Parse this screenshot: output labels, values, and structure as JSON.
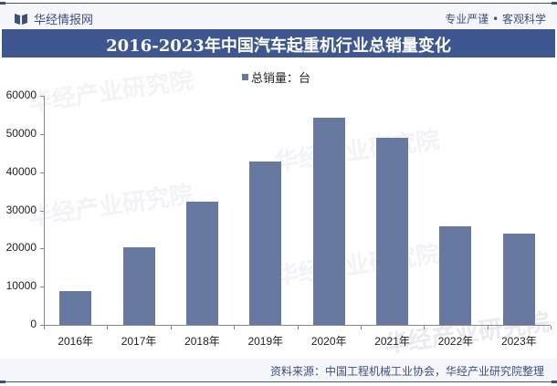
{
  "header": {
    "brand": "华经情报网",
    "slogan": "专业严谨 • 客观科学"
  },
  "title": "2016-2023年中国汽车起重机行业总销量变化",
  "legend": {
    "label": "总销量：台",
    "color": "#67799f"
  },
  "footer": {
    "source": "资料来源：中国工程机械工业协会，华经产业研究院整理"
  },
  "watermark": {
    "text": "华经产业研究院",
    "url": "www.huaon.com"
  },
  "colors": {
    "accent": "#3e5790",
    "bar": "#67799f",
    "header_bg": "#f4f6f9"
  },
  "chart_data": {
    "type": "bar",
    "title": "2016-2023年中国汽车起重机行业总销量变化",
    "categories": [
      "2016年",
      "2017年",
      "2018年",
      "2019年",
      "2020年",
      "2021年",
      "2022年",
      "2023年"
    ],
    "series": [
      {
        "name": "总销量：台",
        "values": [
          8900,
          20300,
          32200,
          42900,
          54200,
          49100,
          25800,
          23800
        ]
      }
    ],
    "xlabel": "",
    "ylabel": "",
    "ylim": [
      0,
      60000
    ],
    "yticks": [
      0,
      10000,
      20000,
      30000,
      40000,
      50000,
      60000
    ],
    "grid": false,
    "legend_position": "top"
  }
}
